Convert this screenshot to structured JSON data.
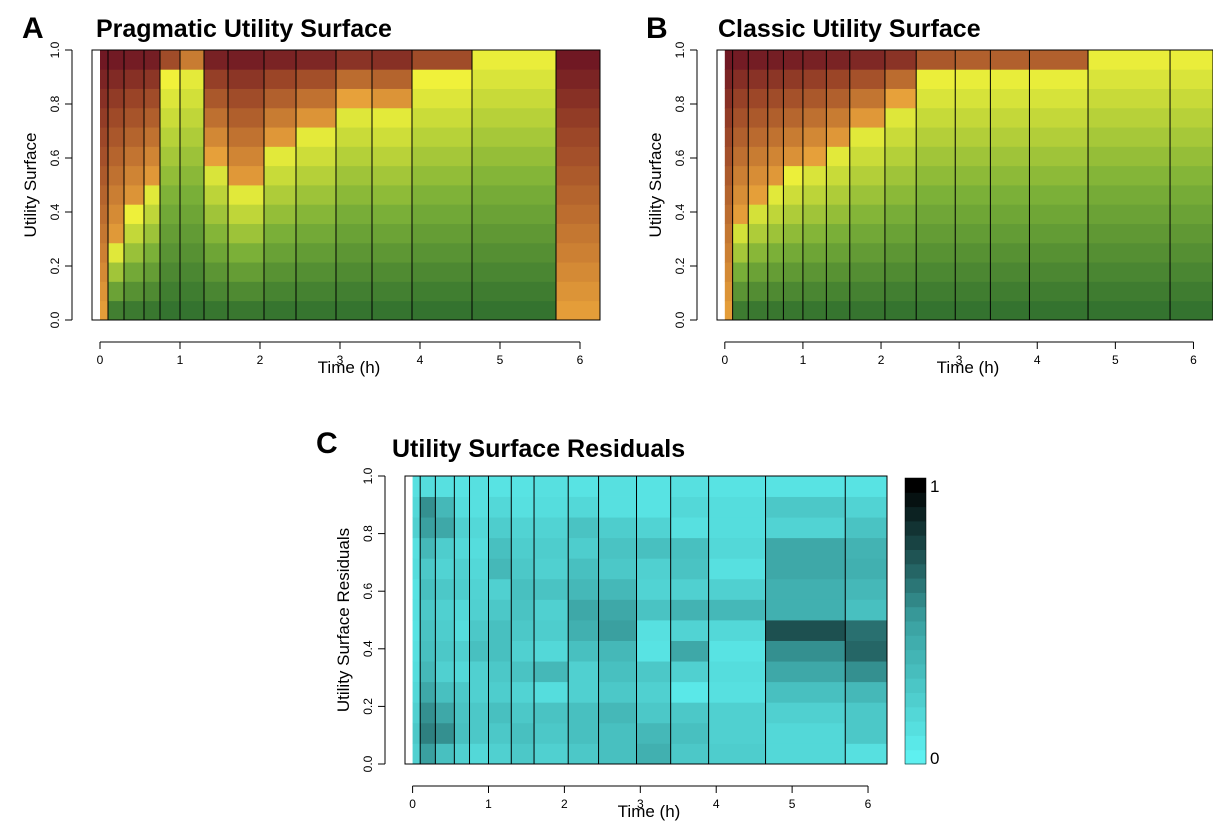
{
  "colors": {
    "yellow": "#f2f23a",
    "dark_green": "#2e6e2e",
    "maroon": "#6a1223",
    "orange": "#e8a23a",
    "cyan": "#5ef0f0",
    "black": "#000000"
  },
  "x_breaks": [
    0,
    0.1,
    0.3,
    0.55,
    0.75,
    1.0,
    1.3,
    1.6,
    2.05,
    2.45,
    2.95,
    3.4,
    3.9,
    4.65,
    5.7,
    6.25
  ],
  "chart_data": [
    {
      "id": "A",
      "type": "heatmap",
      "letter": "A",
      "title": "Pragmatic Utility Surface",
      "xlabel": "Time (h)",
      "ylabel": "Utility Surface",
      "xlim": [
        -0.1,
        6.25
      ],
      "ylim": [
        0,
        1
      ],
      "xticks": [
        "0",
        "1",
        "2",
        "3",
        "4",
        "5",
        "6"
      ],
      "yticks": [
        "0.0",
        "0.2",
        "0.4",
        "0.6",
        "0.8",
        "1.0"
      ],
      "colorscale": "green-yellow-orange-maroon",
      "thresholds": [
        0,
        0.27,
        0.4,
        0.5,
        0.9,
        0.95,
        0.6,
        0.5,
        0.65,
        0.72,
        0.82,
        0.8,
        0.9,
        1.0,
        0.0,
        0.55
      ],
      "grid": false
    },
    {
      "id": "B",
      "type": "heatmap",
      "letter": "B",
      "title": "Classic Utility Surface",
      "xlabel": "Time (h)",
      "ylabel": "Utility Surface",
      "xlim": [
        -0.1,
        6.25
      ],
      "ylim": [
        0,
        1
      ],
      "xticks": [
        "0",
        "1",
        "2",
        "3",
        "4",
        "5",
        "6"
      ],
      "yticks": [
        "0.0",
        "0.2",
        "0.4",
        "0.6",
        "0.8",
        "1.0"
      ],
      "colorscale": "green-yellow-orange-maroon",
      "thresholds": [
        0,
        0.37,
        0.45,
        0.5,
        0.55,
        0.6,
        0.65,
        0.73,
        0.82,
        0.92,
        0.93,
        0.93,
        0.93,
        1.0,
        1.0,
        1.0
      ],
      "grid": false
    },
    {
      "id": "C",
      "type": "heatmap",
      "letter": "C",
      "title": "Utility Surface Residuals",
      "xlabel": "Time (h)",
      "ylabel": "Utility Surface Residuals",
      "xlim": [
        -0.1,
        6.25
      ],
      "ylim": [
        0,
        1
      ],
      "xticks": [
        "0",
        "1",
        "2",
        "3",
        "4",
        "5",
        "6"
      ],
      "yticks": [
        "0.0",
        "0.2",
        "0.4",
        "0.6",
        "0.8",
        "1.0"
      ],
      "colorscale": "cyan-to-black",
      "legend": {
        "max_label": "1",
        "min_label": "0",
        "levels": 20
      },
      "residual_intensity": [
        [
          0.1,
          0.12,
          0.1,
          0.08,
          0.1,
          0.08,
          0.08,
          0.1,
          0.08,
          0.1,
          0.08,
          0.1,
          0.08,
          0.08,
          0.08,
          0.05
        ],
        [
          0.15,
          0.55,
          0.35,
          0.12,
          0.1,
          0.15,
          0.1,
          0.12,
          0.15,
          0.1,
          0.08,
          0.15,
          0.12,
          0.25,
          0.18,
          0.15
        ],
        [
          0.2,
          0.5,
          0.45,
          0.2,
          0.15,
          0.22,
          0.18,
          0.18,
          0.28,
          0.22,
          0.18,
          0.1,
          0.12,
          0.18,
          0.28,
          0.25
        ],
        [
          0.1,
          0.35,
          0.22,
          0.15,
          0.12,
          0.3,
          0.22,
          0.22,
          0.22,
          0.28,
          0.3,
          0.3,
          0.15,
          0.45,
          0.38,
          0.35
        ],
        [
          0.12,
          0.25,
          0.18,
          0.2,
          0.15,
          0.35,
          0.25,
          0.2,
          0.3,
          0.25,
          0.2,
          0.28,
          0.1,
          0.45,
          0.4,
          0.3
        ],
        [
          0.08,
          0.3,
          0.25,
          0.22,
          0.18,
          0.2,
          0.3,
          0.28,
          0.35,
          0.35,
          0.18,
          0.2,
          0.2,
          0.4,
          0.35,
          0.38
        ],
        [
          0.1,
          0.25,
          0.2,
          0.15,
          0.2,
          0.25,
          0.28,
          0.2,
          0.45,
          0.45,
          0.28,
          0.38,
          0.35,
          0.4,
          0.3,
          0.35
        ],
        [
          0.08,
          0.28,
          0.22,
          0.12,
          0.25,
          0.3,
          0.25,
          0.22,
          0.4,
          0.5,
          0.1,
          0.18,
          0.15,
          0.75,
          0.65,
          0.3
        ],
        [
          0.1,
          0.3,
          0.25,
          0.2,
          0.3,
          0.3,
          0.2,
          0.15,
          0.3,
          0.35,
          0.08,
          0.45,
          0.08,
          0.55,
          0.68,
          0.62
        ],
        [
          0.12,
          0.35,
          0.2,
          0.15,
          0.2,
          0.25,
          0.28,
          0.35,
          0.2,
          0.3,
          0.25,
          0.2,
          0.12,
          0.45,
          0.55,
          0.5
        ],
        [
          0.15,
          0.45,
          0.3,
          0.25,
          0.2,
          0.22,
          0.18,
          0.12,
          0.2,
          0.25,
          0.2,
          0.05,
          0.1,
          0.3,
          0.35,
          0.4
        ],
        [
          0.2,
          0.55,
          0.45,
          0.28,
          0.25,
          0.3,
          0.25,
          0.28,
          0.3,
          0.35,
          0.25,
          0.25,
          0.2,
          0.2,
          0.25,
          0.3
        ],
        [
          0.25,
          0.6,
          0.55,
          0.3,
          0.25,
          0.25,
          0.3,
          0.25,
          0.3,
          0.3,
          0.35,
          0.3,
          0.2,
          0.15,
          0.25,
          0.25
        ],
        [
          0.2,
          0.5,
          0.3,
          0.2,
          0.15,
          0.2,
          0.25,
          0.2,
          0.25,
          0.3,
          0.4,
          0.25,
          0.22,
          0.15,
          0.1,
          0.12
        ]
      ]
    }
  ]
}
